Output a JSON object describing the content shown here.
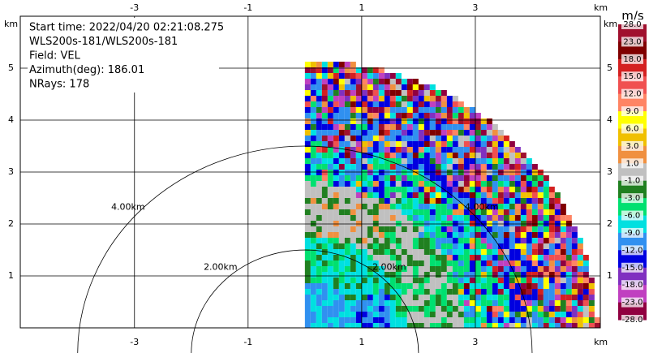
{
  "chart_data": {
    "type": "radar-ppi",
    "info": [
      "Start time: 2022/04/20 02:21:08.275",
      "WLS200s-181/WLS200s-181",
      "Field: VEL",
      "Azimuth(deg): 186.01",
      "NRays: 178"
    ],
    "axis_unit": "km",
    "xlim": [
      -5.01,
      5.2
    ],
    "ylim": [
      0,
      6
    ],
    "xticks": [
      -3,
      -1,
      1,
      3
    ],
    "yticks": [
      1,
      2,
      3,
      4,
      5
    ],
    "grid": true,
    "rings": [
      {
        "value": 2,
        "label": "2.00km"
      },
      {
        "value": 4,
        "label": "4.00km"
      }
    ],
    "colorbar": {
      "unit": "m/s",
      "ticks": [
        {
          "value": 28,
          "label": "28.0"
        },
        {
          "value": 23,
          "label": "23.0"
        },
        {
          "value": 18,
          "label": "18.0"
        },
        {
          "value": 15,
          "label": "15.0"
        },
        {
          "value": 12,
          "label": "12.0"
        },
        {
          "value": 9,
          "label": "9.0"
        },
        {
          "value": 6,
          "label": "6.0"
        },
        {
          "value": 3,
          "label": "3.0"
        },
        {
          "value": 1,
          "label": "1.0"
        },
        {
          "value": -1,
          "label": "-1.0"
        },
        {
          "value": -3,
          "label": "-3.0"
        },
        {
          "value": -6,
          "label": "-6.0"
        },
        {
          "value": -9,
          "label": "-9.0"
        },
        {
          "value": -12,
          "label": "-12.0"
        },
        {
          "value": -15,
          "label": "-15.0"
        },
        {
          "value": -18,
          "label": "-18.0"
        },
        {
          "value": -23,
          "label": "-23.0"
        },
        {
          "value": -28,
          "label": "-28.0"
        }
      ],
      "colors": [
        "#a0102e",
        "#800000",
        "#d42020",
        "#f05050",
        "#ff8464",
        "#ffff00",
        "#f0c000",
        "#f09040",
        "#c0c0c0",
        "#208020",
        "#00e070",
        "#00e0e0",
        "#3090f0",
        "#0000e0",
        "#8030c0",
        "#c040c0",
        "#900040"
      ]
    }
  }
}
